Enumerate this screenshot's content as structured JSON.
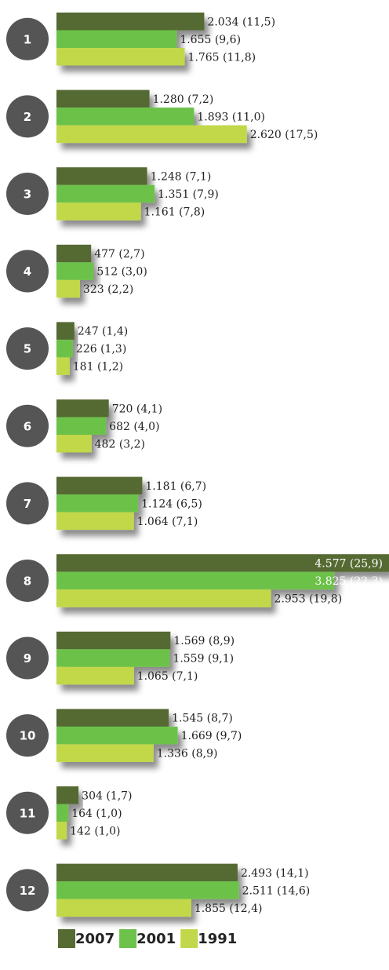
{
  "chart_data": {
    "type": "bar",
    "orientation": "horizontal",
    "categories": [
      "1",
      "2",
      "3",
      "4",
      "5",
      "6",
      "7",
      "8",
      "9",
      "10",
      "11",
      "12"
    ],
    "series": [
      {
        "name": "2007",
        "color": "#556b33",
        "values": [
          2034,
          1280,
          1248,
          477,
          247,
          720,
          1181,
          4577,
          1569,
          1545,
          304,
          2493
        ],
        "value_labels": [
          "2.034 (11,5)",
          "1.280 (7,2)",
          "1.248 (7,1)",
          "477 (2,7)",
          "247 (1,4)",
          "720 (4,1)",
          "1.181 (6,7)",
          "4.577 (25,9)",
          "1.569 (8,9)",
          "1.545 (8,7)",
          "304 (1,7)",
          "2.493 (14,1)"
        ]
      },
      {
        "name": "2001",
        "color": "#6cc24a",
        "values": [
          1655,
          1893,
          1351,
          512,
          226,
          682,
          1124,
          3825,
          1559,
          1669,
          164,
          2511
        ],
        "value_labels": [
          "1.655 (9,6)",
          "1.893 (11,0)",
          "1.351 (7,9)",
          "512 (3,0)",
          "226 (1,3)",
          "682 (4,0)",
          "1.124 (6,5)",
          "3.825 (22,3)",
          "1.559 (9,1)",
          "1.669 (9,7)",
          "164 (1,0)",
          "2.511 (14,6)"
        ]
      },
      {
        "name": "1991",
        "color": "#c2d84a",
        "values": [
          1765,
          2620,
          1161,
          323,
          181,
          482,
          1064,
          2953,
          1065,
          1336,
          142,
          1855
        ],
        "value_labels": [
          "1.765 (11,8)",
          "2.620 (17,5)",
          "1.161 (7,8)",
          "323 (2,2)",
          "181 (1,2)",
          "482 (3,2)",
          "1.064 (7,1)",
          "2.953 (19,8)",
          "1.065 (7,1)",
          "1.336 (8,9)",
          "142 (1,0)",
          "1.855 (12,4)"
        ]
      }
    ]
  }
}
